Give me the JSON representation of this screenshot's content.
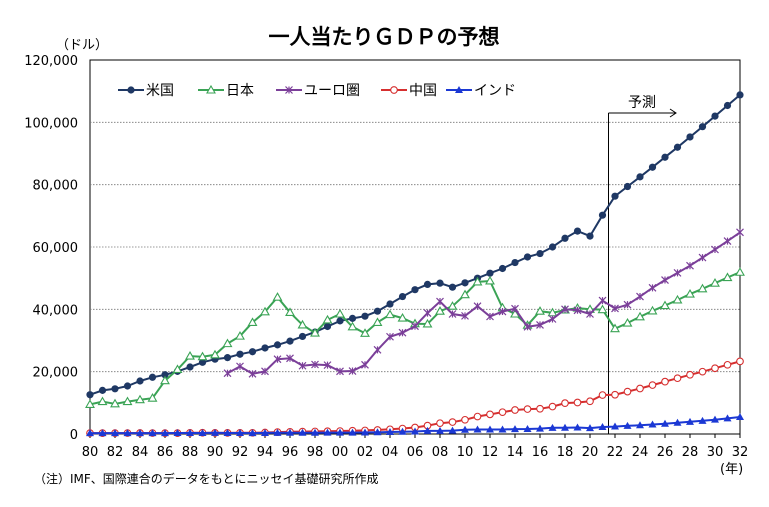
{
  "chart_data": {
    "type": "line",
    "title": "一人当たりＧＤＰの予想",
    "y_unit": "（ドル）",
    "x_unit": "(年)",
    "note": "（注）IMF、国際連合のデータをもとにニッセイ基礎研究所作成",
    "forecast_label": "予測",
    "forecast_start": 2021,
    "ylim": [
      0,
      120000
    ],
    "y_ticks": [
      "0",
      "20,000",
      "40,000",
      "60,000",
      "80,000",
      "100,000",
      "120,000"
    ],
    "x_ticks": [
      "80",
      "82",
      "84",
      "86",
      "88",
      "90",
      "92",
      "94",
      "96",
      "98",
      "00",
      "02",
      "04",
      "06",
      "08",
      "10",
      "12",
      "14",
      "16",
      "18",
      "20",
      "22",
      "24",
      "26",
      "28",
      "30",
      "32"
    ],
    "x": [
      1980,
      1981,
      1982,
      1983,
      1984,
      1985,
      1986,
      1987,
      1988,
      1989,
      1990,
      1991,
      1992,
      1993,
      1994,
      1995,
      1996,
      1997,
      1998,
      1999,
      2000,
      2001,
      2002,
      2003,
      2004,
      2005,
      2006,
      2007,
      2008,
      2009,
      2010,
      2011,
      2012,
      2013,
      2014,
      2015,
      2016,
      2017,
      2018,
      2019,
      2020,
      2021,
      2022,
      2023,
      2024,
      2025,
      2026,
      2027,
      2028,
      2029,
      2030,
      2031,
      2032
    ],
    "grid": true,
    "legend_position": "top-left",
    "series": [
      {
        "name": "米国",
        "color": "#1f3864",
        "marker": "circle-filled",
        "values": [
          12600,
          14000,
          14500,
          15400,
          17000,
          18200,
          19000,
          20100,
          21500,
          23000,
          24000,
          24500,
          25600,
          26400,
          27600,
          28600,
          29800,
          31300,
          32700,
          34500,
          36300,
          37100,
          37800,
          39400,
          41700,
          44100,
          46300,
          48000,
          48400,
          47100,
          48500,
          50000,
          51600,
          53100,
          55000,
          56800,
          57900,
          60000,
          62800,
          65100,
          63500,
          70200,
          76300,
          79400,
          82500,
          85600,
          88800,
          92000,
          95300,
          98600,
          102000,
          105400,
          108800
        ]
      },
      {
        "name": "日本",
        "color": "#3aa355",
        "marker": "triangle-open",
        "values": [
          9500,
          10400,
          9700,
          10400,
          11000,
          11500,
          17100,
          20700,
          25000,
          24800,
          25400,
          29000,
          31400,
          35800,
          39200,
          43900,
          39000,
          35000,
          32400,
          36600,
          38500,
          34400,
          32300,
          35800,
          38300,
          37200,
          35400,
          35300,
          39400,
          41000,
          44700,
          48800,
          49100,
          40500,
          38500,
          34900,
          39400,
          38900,
          39800,
          40400,
          40000,
          39900,
          33800,
          35600,
          37600,
          39500,
          41200,
          43000,
          44900,
          46600,
          48400,
          50200,
          51900
        ]
      },
      {
        "name": "ユーロ圏",
        "color": "#7b3f99",
        "marker": "star",
        "values": [
          null,
          null,
          null,
          null,
          null,
          null,
          null,
          null,
          null,
          null,
          null,
          19500,
          21700,
          19300,
          20100,
          24000,
          24300,
          21900,
          22300,
          22100,
          20100,
          20200,
          22200,
          27000,
          31200,
          32500,
          34600,
          38800,
          42500,
          38500,
          37900,
          41000,
          37700,
          39300,
          40200,
          34400,
          35000,
          36900,
          40000,
          39700,
          38500,
          42800,
          40300,
          41500,
          44100,
          46900,
          49400,
          51700,
          54000,
          56600,
          59200,
          61900,
          64700
        ]
      },
      {
        "name": "中国",
        "color": "#d62f2f",
        "marker": "circle-open",
        "values": [
          300,
          290,
          280,
          300,
          310,
          300,
          280,
          290,
          370,
          400,
          350,
          350,
          370,
          380,
          470,
          600,
          700,
          780,
          830,
          880,
          950,
          1050,
          1150,
          1300,
          1510,
          1750,
          2100,
          2690,
          3470,
          3830,
          4560,
          5600,
          6300,
          7000,
          7700,
          8000,
          8100,
          8800,
          9900,
          10100,
          10500,
          12500,
          12600,
          13600,
          14600,
          15700,
          16800,
          17900,
          19000,
          20000,
          21100,
          22200,
          23300
        ]
      },
      {
        "name": "インド",
        "color": "#1b38d4",
        "marker": "triangle-filled",
        "values": [
          270,
          280,
          280,
          290,
          280,
          290,
          300,
          320,
          330,
          320,
          370,
          310,
          320,
          300,
          340,
          380,
          400,
          410,
          410,
          440,
          440,
          450,
          470,
          550,
          630,
          710,
          800,
          1000,
          1000,
          1100,
          1350,
          1450,
          1430,
          1440,
          1560,
          1600,
          1730,
          1980,
          1990,
          2070,
          1900,
          2250,
          2390,
          2620,
          2800,
          3060,
          3280,
          3600,
          3900,
          4220,
          4600,
          5000,
          5450
        ]
      }
    ]
  }
}
